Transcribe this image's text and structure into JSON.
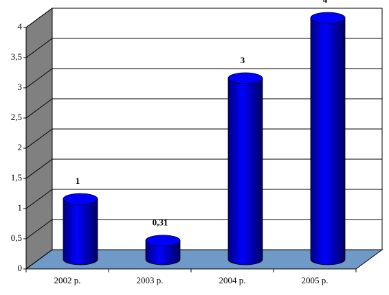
{
  "chart_data": {
    "type": "cylinder",
    "categories": [
      "2002 р.",
      "2003 р.",
      "2004 р.",
      "2005 р."
    ],
    "values": [
      1,
      0.31,
      3,
      4
    ],
    "value_labels": [
      "1",
      "0,31",
      "3",
      "4"
    ],
    "color": "#0000ff",
    "ylim": [
      0,
      4
    ],
    "yticks": [
      0,
      {
        "value": 0.5,
        "label": "0,5"
      },
      1,
      {
        "value": 1.5,
        "label": "1,5"
      },
      2,
      {
        "value": 2.5,
        "label": "2,5"
      },
      3,
      {
        "value": 3.5,
        "label": "3,5"
      },
      4
    ],
    "grid": true
  }
}
